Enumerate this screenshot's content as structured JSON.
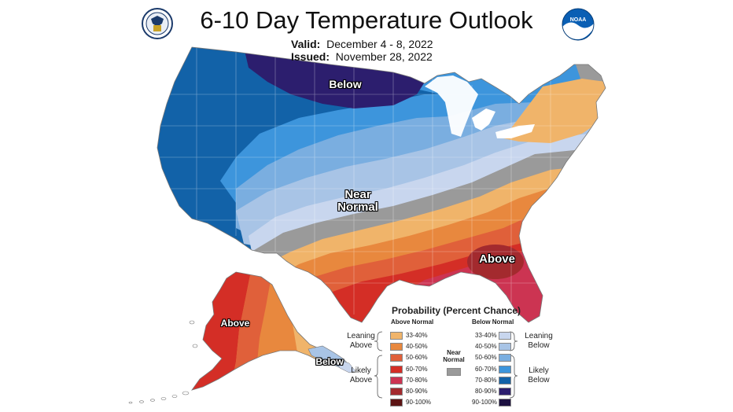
{
  "title": "6-10 Day Temperature Outlook",
  "valid_label": "Valid:",
  "valid_value": "December 4 - 8, 2022",
  "issued_label": "Issued:",
  "issued_value": "November 28, 2022",
  "logos": {
    "left": "doc-seal-icon",
    "right": "noaa-logo-icon",
    "noaa_text": "NOAA"
  },
  "map_labels": {
    "below_north": "Below",
    "near_normal_1": "Near",
    "near_normal_2": "Normal",
    "above_southeast": "Above",
    "above_alaska": "Above",
    "below_alaska": "Below"
  },
  "legend": {
    "title": "Probability (Percent Chance)",
    "above_header": "Above Normal",
    "below_header": "Below Normal",
    "near_normal_1": "Near",
    "near_normal_2": "Normal",
    "leaning_above_1": "Leaning",
    "leaning_above_2": "Above",
    "likely_above_1": "Likely",
    "likely_above_2": "Above",
    "leaning_below_1": "Leaning",
    "leaning_below_2": "Below",
    "likely_below_1": "Likely",
    "likely_below_2": "Below",
    "ranges": [
      "33-40%",
      "40-50%",
      "50-60%",
      "60-70%",
      "70-80%",
      "80-90%",
      "90-100%"
    ],
    "above_colors": [
      "#f0b46a",
      "#e8883e",
      "#e0603a",
      "#d42e26",
      "#cc3452",
      "#a32a2e",
      "#5c1414"
    ],
    "below_colors": [
      "#c8d6ee",
      "#a8c4e6",
      "#7aaee0",
      "#3d95dc",
      "#1262a8",
      "#2c1e6e",
      "#1c1040"
    ],
    "near_color": "#9a9a9a"
  },
  "colors": {
    "below_33_40": "#c8d6ee",
    "below_40_50": "#a8c4e6",
    "below_50_60": "#7aaee0",
    "below_60_70": "#3d95dc",
    "below_70_80": "#1262a8",
    "below_80_90": "#2c1e6e",
    "near_normal": "#9a9a9a",
    "above_33_40": "#f0b46a",
    "above_40_50": "#e8883e",
    "above_50_60": "#e0603a",
    "above_60_70": "#d42e26",
    "above_70_80": "#cc3452",
    "above_80_90": "#a32a2e"
  }
}
